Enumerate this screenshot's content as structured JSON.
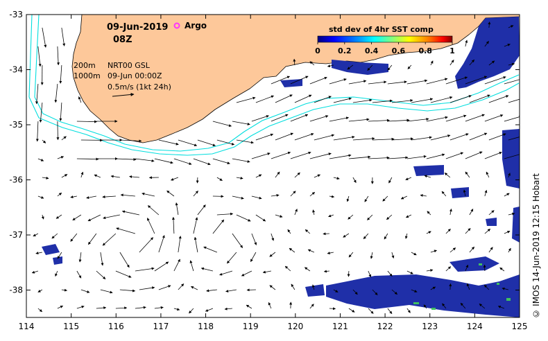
{
  "date_title": "09-Jun-2019",
  "time_title": "08Z",
  "argo_label": "Argo",
  "legend": {
    "title": "std dev of 4hr SST comp",
    "ticks": [
      "0",
      "0.2",
      "0.4",
      "0.6",
      "0.8",
      "1"
    ],
    "colors": [
      "#00007f",
      "#0000ff",
      "#0080ff",
      "#00ffff",
      "#80ff80",
      "#ffff00",
      "#ff8000",
      "#ff0000",
      "#7f0000"
    ]
  },
  "depth_labels": [
    "200m",
    "1000m"
  ],
  "info_lines": [
    "NRT00 GSL",
    "09-Jun 00:00Z",
    "0.5m/s (1kt 24h)"
  ],
  "x_ticks": [
    "114",
    "115",
    "116",
    "117",
    "118",
    "119",
    "120",
    "121",
    "122",
    "123",
    "124",
    "125"
  ],
  "y_ticks": [
    "-33",
    "-34",
    "-35",
    "-36",
    "-37",
    "-38"
  ],
  "credit": "© IMOS 14-Jun-2019 12:15 Hobart",
  "colors": {
    "land": "#fdc89a",
    "sst_patch": "#1f2fa8",
    "isobath": "#00dede",
    "argo": "#ff33ff"
  }
}
